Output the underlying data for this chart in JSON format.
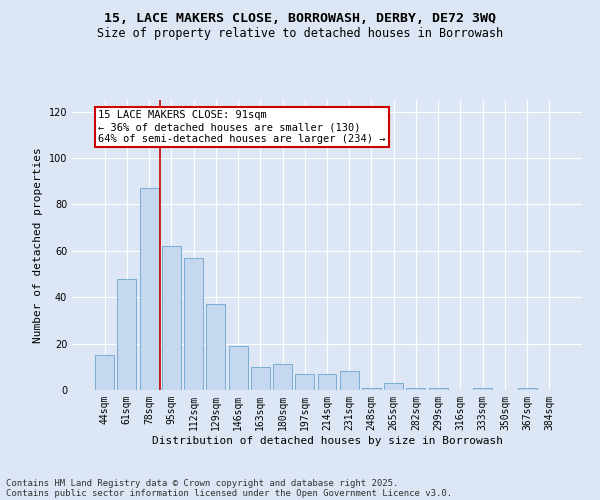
{
  "title_line1": "15, LACE MAKERS CLOSE, BORROWASH, DERBY, DE72 3WQ",
  "title_line2": "Size of property relative to detached houses in Borrowash",
  "xlabel": "Distribution of detached houses by size in Borrowash",
  "ylabel": "Number of detached properties",
  "categories": [
    "44sqm",
    "61sqm",
    "78sqm",
    "95sqm",
    "112sqm",
    "129sqm",
    "146sqm",
    "163sqm",
    "180sqm",
    "197sqm",
    "214sqm",
    "231sqm",
    "248sqm",
    "265sqm",
    "282sqm",
    "299sqm",
    "316sqm",
    "333sqm",
    "350sqm",
    "367sqm",
    "384sqm"
  ],
  "values": [
    15,
    48,
    87,
    62,
    57,
    37,
    19,
    10,
    11,
    7,
    7,
    8,
    1,
    3,
    1,
    1,
    0,
    1,
    0,
    1,
    0
  ],
  "bar_color": "#c5d8f0",
  "bar_edge_color": "#7aadd4",
  "background_color": "#dde6f4",
  "grid_color": "#ffffff",
  "vline_x_index": 3,
  "vline_color": "#cc0000",
  "annotation_line1": "15 LACE MAKERS CLOSE: 91sqm",
  "annotation_line2": "← 36% of detached houses are smaller (130)",
  "annotation_line3": "64% of semi-detached houses are larger (234) →",
  "annotation_box_color": "#cc0000",
  "annotation_box_facecolor": "#ffffff",
  "ylim": [
    0,
    125
  ],
  "yticks": [
    0,
    20,
    40,
    60,
    80,
    100,
    120
  ],
  "footnote_line1": "Contains HM Land Registry data © Crown copyright and database right 2025.",
  "footnote_line2": "Contains public sector information licensed under the Open Government Licence v3.0.",
  "title_fontsize": 9.5,
  "subtitle_fontsize": 8.5,
  "axis_label_fontsize": 8,
  "tick_fontsize": 7,
  "annotation_fontsize": 7.5,
  "footnote_fontsize": 6.5
}
